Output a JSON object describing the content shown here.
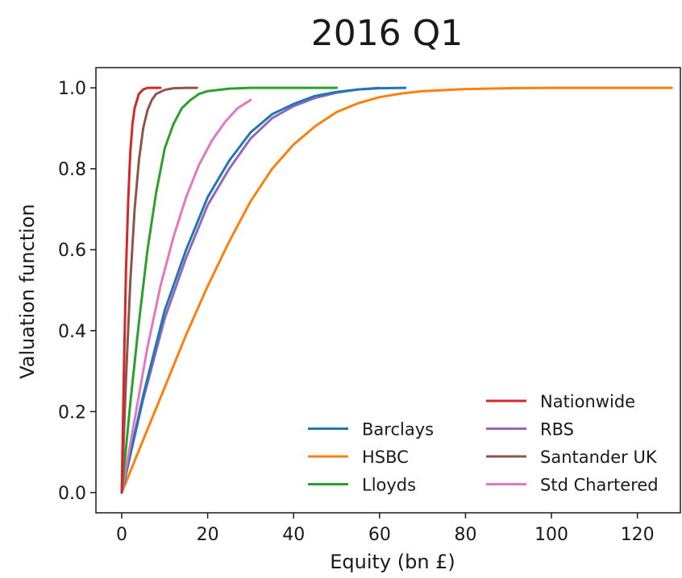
{
  "chart_data": {
    "type": "line",
    "title": "2016 Q1",
    "xlabel": "Equity (bn £)",
    "ylabel": "Valuation function",
    "xlim": [
      -6,
      130
    ],
    "ylim": [
      -0.05,
      1.05
    ],
    "xticks": [
      0,
      20,
      40,
      60,
      80,
      100,
      120
    ],
    "xtick_labels": [
      "0",
      "20",
      "40",
      "60",
      "80",
      "100",
      "120"
    ],
    "yticks": [
      0.0,
      0.2,
      0.4,
      0.6,
      0.8,
      1.0
    ],
    "ytick_labels": [
      "0.0",
      "0.2",
      "0.4",
      "0.6",
      "0.8",
      "1.0"
    ],
    "grid": false,
    "legend_position": "lower-right",
    "legend_columns": 2,
    "series": [
      {
        "name": "Barclays",
        "color": "#1f77b4",
        "x": [
          0,
          5,
          10,
          15,
          20,
          25,
          30,
          35,
          40,
          45,
          50,
          55,
          60,
          66
        ],
        "y": [
          0.0,
          0.24,
          0.45,
          0.6,
          0.73,
          0.82,
          0.89,
          0.935,
          0.96,
          0.98,
          0.99,
          0.996,
          0.999,
          1.0
        ]
      },
      {
        "name": "HSBC",
        "color": "#ff7f0e",
        "x": [
          0,
          5,
          10,
          15,
          20,
          25,
          30,
          35,
          40,
          45,
          50,
          55,
          60,
          65,
          70,
          80,
          90,
          100,
          110,
          120,
          128
        ],
        "y": [
          0.0,
          0.13,
          0.26,
          0.39,
          0.51,
          0.62,
          0.72,
          0.8,
          0.86,
          0.905,
          0.94,
          0.962,
          0.977,
          0.986,
          0.992,
          0.997,
          0.999,
          1.0,
          1.0,
          1.0,
          1.0
        ]
      },
      {
        "name": "Lloyds",
        "color": "#2ca02c",
        "x": [
          0,
          2,
          4,
          6,
          8,
          10,
          12,
          14,
          16,
          18,
          20,
          25,
          30,
          35,
          40,
          50
        ],
        "y": [
          0.0,
          0.22,
          0.42,
          0.6,
          0.74,
          0.85,
          0.91,
          0.95,
          0.97,
          0.985,
          0.992,
          0.998,
          1.0,
          1.0,
          1.0,
          1.0
        ]
      },
      {
        "name": "Nationwide",
        "color": "#d62728",
        "x": [
          0,
          0.5,
          1,
          1.5,
          2,
          2.5,
          3,
          4,
          5,
          6,
          7,
          9
        ],
        "y": [
          0.0,
          0.3,
          0.55,
          0.72,
          0.84,
          0.91,
          0.95,
          0.985,
          0.996,
          1.0,
          1.0,
          1.0
        ]
      },
      {
        "name": "RBS",
        "color": "#9467bd",
        "x": [
          0,
          5,
          10,
          15,
          20,
          25,
          30,
          35,
          40,
          45,
          50,
          55,
          60
        ],
        "y": [
          0.0,
          0.23,
          0.43,
          0.58,
          0.71,
          0.8,
          0.875,
          0.925,
          0.955,
          0.975,
          0.988,
          0.996,
          1.0
        ]
      },
      {
        "name": "Santander UK",
        "color": "#8c564b",
        "x": [
          0,
          1,
          2,
          3,
          4,
          5,
          6,
          7,
          8,
          10,
          12,
          15,
          17.5
        ],
        "y": [
          0.0,
          0.28,
          0.52,
          0.7,
          0.82,
          0.9,
          0.945,
          0.97,
          0.985,
          0.995,
          0.999,
          1.0,
          1.0
        ]
      },
      {
        "name": "Std Chartered",
        "color": "#e377c2",
        "x": [
          0,
          3,
          6,
          9,
          12,
          15,
          18,
          21,
          24,
          27,
          30
        ],
        "y": [
          0.0,
          0.18,
          0.36,
          0.51,
          0.63,
          0.73,
          0.81,
          0.87,
          0.915,
          0.95,
          0.97
        ]
      }
    ]
  }
}
